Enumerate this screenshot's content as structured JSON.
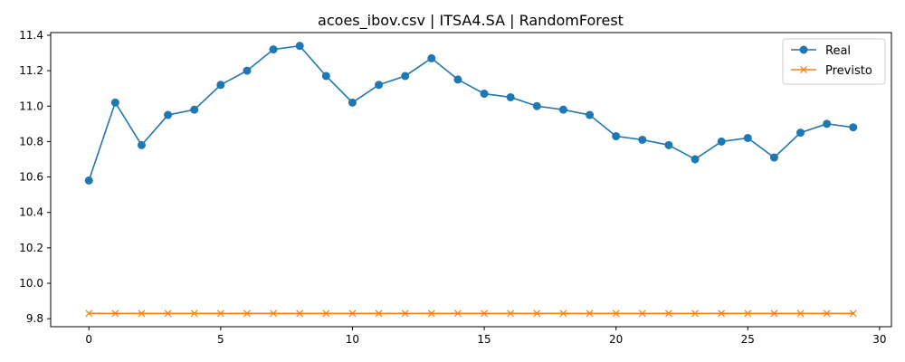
{
  "chart_data": {
    "type": "line",
    "title": "acoes_ibov.csv | ITSA4.SA | RandomForest",
    "xlabel": "",
    "ylabel": "",
    "xlim": [
      -1.45,
      30.45
    ],
    "ylim": [
      9.755,
      11.415
    ],
    "x_ticks": [
      0,
      5,
      10,
      15,
      20,
      25,
      30
    ],
    "y_ticks": [
      9.8,
      10.0,
      10.2,
      10.4,
      10.6,
      10.8,
      11.0,
      11.2,
      11.4
    ],
    "x_tick_labels": [
      "0",
      "5",
      "10",
      "15",
      "20",
      "25",
      "30"
    ],
    "y_tick_labels": [
      "9.8",
      "10.0",
      "10.2",
      "10.4",
      "10.6",
      "10.8",
      "11.0",
      "11.2",
      "11.4"
    ],
    "grid": false,
    "legend_position": "top-right",
    "x": [
      0,
      1,
      2,
      3,
      4,
      5,
      6,
      7,
      8,
      9,
      10,
      11,
      12,
      13,
      14,
      15,
      16,
      17,
      18,
      19,
      20,
      21,
      22,
      23,
      24,
      25,
      26,
      27,
      28,
      29
    ],
    "series": [
      {
        "name": "Real",
        "color": "#1f77b4",
        "marker": "circle",
        "values": [
          10.58,
          11.02,
          10.78,
          10.95,
          10.98,
          11.12,
          11.2,
          11.32,
          11.34,
          11.17,
          11.02,
          11.12,
          11.17,
          11.27,
          11.15,
          11.07,
          11.05,
          11.0,
          10.98,
          10.95,
          10.83,
          10.81,
          10.78,
          10.7,
          10.8,
          10.82,
          10.71,
          10.85,
          10.9,
          10.88
        ]
      },
      {
        "name": "Previsto",
        "color": "#ff7f0e",
        "marker": "x",
        "values": [
          9.83,
          9.83,
          9.83,
          9.83,
          9.83,
          9.83,
          9.83,
          9.83,
          9.83,
          9.83,
          9.83,
          9.83,
          9.83,
          9.83,
          9.83,
          9.83,
          9.83,
          9.83,
          9.83,
          9.83,
          9.83,
          9.83,
          9.83,
          9.83,
          9.83,
          9.83,
          9.83,
          9.83,
          9.83,
          9.83
        ]
      }
    ]
  }
}
